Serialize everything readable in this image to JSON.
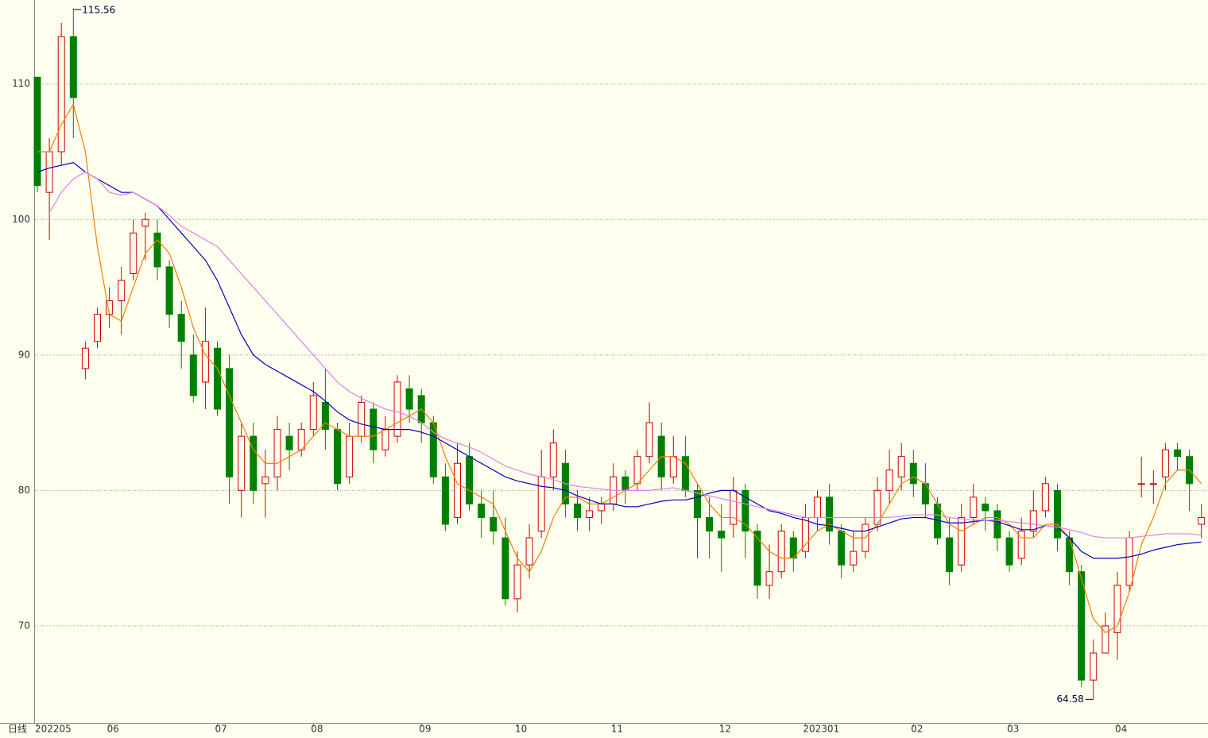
{
  "chart_data": {
    "type": "candlestick",
    "period_label": "日线",
    "categories": [
      "202205",
      null,
      null,
      null,
      null,
      null,
      "06",
      null,
      null,
      null,
      null,
      null,
      null,
      null,
      null,
      "07",
      null,
      null,
      null,
      null,
      null,
      null,
      null,
      "08",
      null,
      null,
      null,
      null,
      null,
      null,
      null,
      null,
      "09",
      null,
      null,
      null,
      null,
      null,
      null,
      null,
      "10",
      null,
      null,
      null,
      null,
      null,
      null,
      null,
      "11",
      null,
      null,
      null,
      null,
      null,
      null,
      null,
      null,
      "12",
      null,
      null,
      null,
      null,
      null,
      null,
      "202301",
      null,
      null,
      null,
      null,
      null,
      null,
      null,
      null,
      "02",
      null,
      null,
      null,
      null,
      null,
      null,
      null,
      "03",
      null,
      null,
      null,
      null,
      null,
      null,
      null,
      null,
      "04",
      null,
      null,
      null,
      null,
      null,
      null,
      null
    ],
    "open": [
      110.5,
      102,
      105,
      113.5,
      89,
      91,
      93,
      94,
      96,
      99.5,
      99,
      96.5,
      93,
      90,
      88,
      90.5,
      89,
      80,
      84,
      80.5,
      81,
      84,
      83,
      84.5,
      86.5,
      84.5,
      81,
      84,
      86,
      83,
      84,
      87.5,
      87,
      85,
      81,
      78,
      82.5,
      79,
      78,
      76.5,
      72,
      74.5,
      77,
      81,
      82,
      79,
      78,
      78.5,
      79,
      81,
      80.5,
      82.5,
      84,
      81,
      82.5,
      80,
      78,
      77,
      77.5,
      80,
      77,
      73,
      74,
      76.5,
      75.5,
      78,
      79.5,
      77,
      74.5,
      75.5,
      77.5,
      80,
      81,
      82,
      80.5,
      79,
      76.5,
      74.5,
      78,
      79,
      78.5,
      76.5,
      75,
      77,
      78.5,
      80,
      76.5,
      74,
      66,
      68,
      69.5,
      73,
      80.5,
      80.5,
      81,
      83,
      82.5,
      77.5
    ],
    "high": [
      110.5,
      106,
      114.5,
      115.56,
      91,
      93.5,
      95,
      96.5,
      100,
      100.5,
      100,
      97,
      94,
      91.5,
      93.5,
      91,
      90,
      85,
      85,
      83,
      85.5,
      85,
      85,
      88,
      89,
      85,
      85,
      87,
      86.5,
      85.5,
      88.5,
      88.5,
      87.5,
      85.5,
      82,
      83.5,
      83.5,
      80,
      80,
      78,
      75.5,
      77.5,
      83,
      84.5,
      83,
      80,
      79.5,
      79.5,
      82,
      81.5,
      83,
      86.5,
      85,
      84,
      84,
      80.5,
      79.5,
      79,
      81,
      80.5,
      77.5,
      76,
      77.5,
      77,
      79,
      80,
      80.5,
      77.5,
      77,
      78,
      81,
      83,
      83.5,
      83,
      82,
      79.5,
      78,
      79,
      80.5,
      79.5,
      79,
      77,
      78,
      80,
      81,
      80.5,
      77,
      74.5,
      69,
      71,
      74,
      77,
      82.5,
      81.5,
      83.5,
      83.5,
      83,
      79
    ],
    "low": [
      102,
      98.5,
      104,
      106,
      88.2,
      90.5,
      92,
      91.5,
      95.5,
      97,
      95.5,
      92,
      89,
      86.5,
      86,
      85.5,
      79,
      78,
      79,
      78,
      80,
      81.5,
      82.5,
      84,
      83,
      80,
      80.5,
      83.5,
      82,
      82.5,
      83.5,
      85,
      83.5,
      80.5,
      77,
      77.5,
      78.5,
      76.5,
      76,
      71.5,
      71,
      73.5,
      76.5,
      80,
      78,
      77,
      77,
      77.5,
      78.5,
      79,
      80,
      82,
      80,
      80.5,
      79.5,
      75,
      75,
      74,
      76.5,
      75,
      72,
      72,
      73.5,
      74,
      75,
      77,
      76,
      73.5,
      74,
      75,
      77,
      79,
      80,
      79.5,
      78,
      76,
      73,
      74,
      77.5,
      77,
      75.5,
      74,
      74.5,
      76.5,
      78,
      75.5,
      73,
      65.5,
      64.58,
      68,
      67.5,
      72.5,
      79.5,
      79,
      80,
      81.5,
      78.5,
      76.5
    ],
    "close": [
      102.5,
      105,
      113.5,
      109,
      90.5,
      93,
      94,
      95.5,
      99,
      100,
      96.5,
      93,
      91,
      87,
      91,
      86,
      81,
      84,
      80,
      81,
      84.5,
      83,
      84.5,
      87,
      84.5,
      80.5,
      84,
      86.5,
      83,
      84.5,
      88,
      86,
      85,
      81,
      77.5,
      82,
      79,
      78,
      77,
      72,
      74.5,
      76.5,
      81,
      83.5,
      79,
      78,
      78.5,
      79,
      81,
      80,
      82.5,
      85,
      81,
      82.5,
      80,
      78,
      77,
      76.5,
      80,
      77,
      73,
      74,
      77,
      75,
      78,
      79.5,
      77,
      74.5,
      75.5,
      77.5,
      80,
      81.5,
      82.5,
      80.5,
      79,
      76.5,
      74,
      78,
      79.5,
      78.5,
      76.5,
      74.5,
      77,
      78.5,
      80.5,
      76.5,
      74,
      66,
      68,
      70,
      73,
      76.5,
      80.5,
      80.5,
      83,
      82.5,
      80.5,
      78
    ],
    "up_color": "#d00000",
    "down_color": "#008000",
    "series": [
      {
        "color": "#f08000",
        "values": [
          105,
          105,
          107,
          108.5,
          105,
          98,
          93,
          92.5,
          95,
          97.5,
          98.5,
          97.5,
          95,
          92,
          90,
          89,
          87,
          85,
          83,
          82,
          82,
          82.5,
          83,
          84,
          85,
          84.5,
          84,
          84,
          84,
          84.5,
          85,
          85.5,
          86,
          85,
          82.5,
          80.5,
          80,
          79.5,
          79,
          77,
          75,
          74,
          75.5,
          78,
          79.5,
          79.5,
          79,
          79,
          79.5,
          80,
          80.5,
          81.5,
          82.5,
          82.5,
          82,
          80.5,
          79,
          78,
          78,
          77.5,
          76.5,
          75.5,
          75,
          75,
          76,
          77,
          77.5,
          77,
          76.5,
          76.5,
          77.5,
          79,
          80.5,
          81,
          80.5,
          79,
          77.5,
          77,
          77.5,
          78,
          78,
          77.5,
          76.5,
          76.5,
          77.5,
          77.5,
          76.5,
          73.5,
          70.5,
          69.5,
          70,
          72.5,
          76,
          78,
          80.5,
          81.5,
          81.5,
          80.5
        ]
      },
      {
        "color": "#0000c0",
        "values": [
          103.5,
          103.8,
          104,
          104.2,
          103.5,
          103,
          102.5,
          102,
          102,
          101.5,
          101,
          100,
          99,
          98,
          97,
          95.5,
          93.5,
          91.5,
          90,
          89.3,
          88.8,
          88.3,
          87.8,
          87.3,
          86.6,
          85.8,
          85.2,
          84.9,
          84.7,
          84.5,
          84.5,
          84.5,
          84.3,
          84,
          83.5,
          83,
          82.5,
          82,
          81.5,
          81,
          80.7,
          80.5,
          80.3,
          80.2,
          80,
          79.6,
          79.3,
          79,
          79,
          78.8,
          78.8,
          79,
          79.2,
          79.3,
          79.3,
          79.5,
          79.8,
          80,
          80,
          79.5,
          79,
          78.5,
          78.3,
          78,
          77.8,
          77.5,
          77.4,
          77.2,
          77,
          77,
          77.3,
          77.6,
          77.9,
          78,
          78,
          77.8,
          77.6,
          77.6,
          77.7,
          77.8,
          77.7,
          77.4,
          77.1,
          77.1,
          77.4,
          77.3,
          76.5,
          75.5,
          75,
          75,
          75,
          75.1,
          75.3,
          75.6,
          75.8,
          76,
          76.1,
          76.2
        ]
      },
      {
        "color": "#e080e8",
        "values": [
          null,
          100.5,
          102,
          103,
          103.5,
          103,
          102,
          101.8,
          102,
          101.5,
          101,
          100.3,
          99.5,
          99,
          98.5,
          98,
          97,
          96,
          95,
          94,
          93,
          92,
          91,
          90,
          89,
          88,
          87.3,
          86.8,
          86.4,
          86,
          85.8,
          85.5,
          85,
          84.3,
          83.8,
          83.5,
          83.2,
          82.8,
          82.3,
          81.8,
          81.5,
          81.2,
          81,
          80.8,
          80.5,
          80.3,
          80.2,
          80.1,
          80,
          80,
          80,
          80,
          80.1,
          80.2,
          80,
          79.8,
          79.6,
          79.4,
          79.2,
          79,
          78.8,
          78.6,
          78.4,
          78.2,
          78,
          78,
          78,
          78,
          78,
          78,
          78,
          78,
          78.1,
          78.2,
          78.2,
          78.2,
          78,
          77.9,
          77.8,
          77.8,
          77.8,
          77.7,
          77.6,
          77.5,
          77.4,
          77.3,
          77.1,
          76.9,
          76.6,
          76.5,
          76.5,
          76.5,
          76.6,
          76.7,
          76.8,
          76.8,
          76.8,
          76.7
        ]
      }
    ],
    "ylim": [
      62.84,
      116.2
    ],
    "yticks": [
      70,
      80,
      90,
      100,
      110
    ],
    "grid": true
  }
}
